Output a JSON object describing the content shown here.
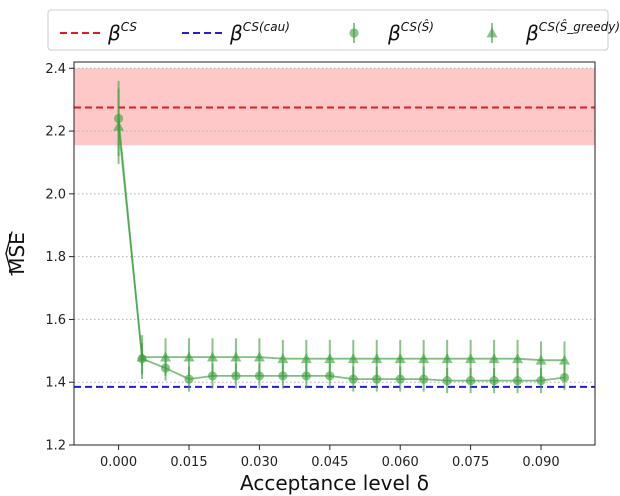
{
  "chart_data": {
    "type": "line",
    "xlabel": "Acceptance level δ",
    "ylabel": "MSE",
    "xlim": [
      -0.0095,
      0.1015
    ],
    "ylim": [
      1.2,
      2.42
    ],
    "xticks": [
      0.0,
      0.015,
      0.03,
      0.045,
      0.06,
      0.075,
      0.09
    ],
    "xtick_labels": [
      "0.000",
      "0.015",
      "0.030",
      "0.045",
      "0.060",
      "0.075",
      "0.090"
    ],
    "yticks": [
      1.2,
      1.4,
      1.6,
      1.8,
      2.0,
      2.2,
      2.4
    ],
    "ytick_labels": [
      "1.2",
      "1.4",
      "1.6",
      "1.8",
      "2.0",
      "2.2",
      "2.4"
    ],
    "grid": "horizontal dotted",
    "legend_position": "top, outside",
    "reference_lines": [
      {
        "legend_base": "β",
        "legend_sup": "CS",
        "value": 2.275,
        "color": "#e41a1c",
        "band": [
          2.155,
          2.4
        ],
        "band_color": "#ffc8c8"
      },
      {
        "legend_base": "β",
        "legend_sup": "CS(cau)",
        "value": 1.385,
        "color": "#1f1fd8"
      }
    ],
    "series": [
      {
        "legend_base": "β",
        "legend_sup": "CS(Ŝ)",
        "marker": "circle",
        "color": "#3a9e3a",
        "x": [
          0.0,
          0.005,
          0.01,
          0.015,
          0.02,
          0.025,
          0.03,
          0.035,
          0.04,
          0.045,
          0.05,
          0.055,
          0.06,
          0.065,
          0.07,
          0.075,
          0.08,
          0.085,
          0.09,
          0.095
        ],
        "y": [
          2.24,
          1.475,
          1.445,
          1.41,
          1.42,
          1.42,
          1.42,
          1.42,
          1.42,
          1.42,
          1.41,
          1.41,
          1.41,
          1.41,
          1.405,
          1.405,
          1.405,
          1.405,
          1.405,
          1.415
        ],
        "err": [
          0.12,
          0.05,
          0.04,
          0.04,
          0.04,
          0.04,
          0.04,
          0.04,
          0.04,
          0.04,
          0.04,
          0.04,
          0.04,
          0.04,
          0.04,
          0.04,
          0.04,
          0.04,
          0.04,
          0.04
        ]
      },
      {
        "legend_base": "β",
        "legend_sup": "CS(Ŝ_greedy)",
        "marker": "triangle",
        "color": "#3a9e3a",
        "x": [
          0.0,
          0.005,
          0.01,
          0.015,
          0.02,
          0.025,
          0.03,
          0.035,
          0.04,
          0.045,
          0.05,
          0.055,
          0.06,
          0.065,
          0.07,
          0.075,
          0.08,
          0.085,
          0.09,
          0.095
        ],
        "y": [
          2.215,
          1.48,
          1.48,
          1.48,
          1.48,
          1.48,
          1.48,
          1.475,
          1.475,
          1.475,
          1.475,
          1.475,
          1.475,
          1.475,
          1.475,
          1.475,
          1.475,
          1.475,
          1.47,
          1.47
        ],
        "err": [
          0.12,
          0.07,
          0.06,
          0.06,
          0.06,
          0.06,
          0.06,
          0.06,
          0.06,
          0.06,
          0.06,
          0.06,
          0.06,
          0.06,
          0.06,
          0.06,
          0.06,
          0.06,
          0.06,
          0.06
        ]
      }
    ]
  }
}
